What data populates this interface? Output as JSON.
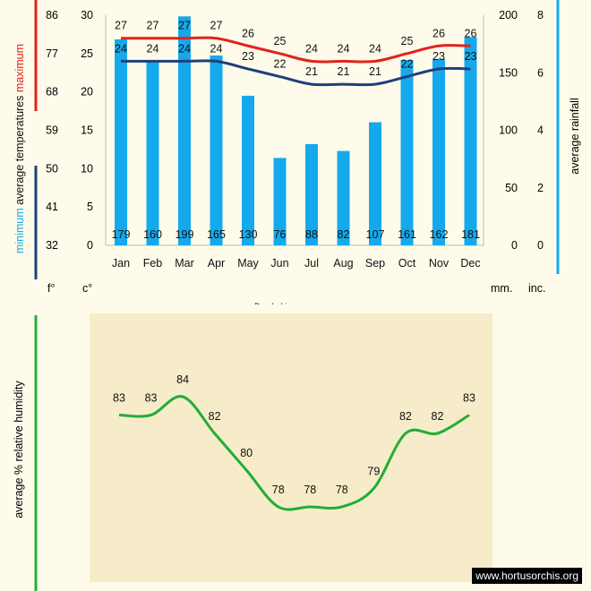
{
  "chart_data": [
    {
      "type": "bar",
      "categories": [
        "Jan",
        "Feb",
        "Mar",
        "Apr",
        "May",
        "Jun",
        "Jul",
        "Aug",
        "Sep",
        "Oct",
        "Nov",
        "Dec"
      ],
      "series": [
        {
          "name": "rainfall",
          "values": [
            179,
            160,
            199,
            165,
            130,
            76,
            88,
            82,
            107,
            161,
            162,
            181
          ]
        }
      ],
      "lines": [
        {
          "name": "maximum",
          "color": "#e2231a",
          "values": [
            27,
            27,
            27,
            27,
            26,
            25,
            24,
            24,
            24,
            25,
            26,
            26
          ]
        },
        {
          "name": "minimum",
          "color": "#1f3f7a",
          "values": [
            24,
            24,
            24,
            24,
            23,
            22,
            21,
            21,
            21,
            22,
            23,
            23
          ]
        }
      ],
      "title": "Dendrobium anosmum",
      "left_label_parts": [
        "minimum",
        "average temperatures",
        "maximum"
      ],
      "right_label": "average rainfall",
      "axis_f": {
        "ticks": [
          32,
          41,
          50,
          59,
          68,
          77,
          86
        ],
        "unit": "f°"
      },
      "axis_c": {
        "ticks": [
          0,
          5,
          10,
          15,
          20,
          25,
          30
        ],
        "unit": "c°",
        "ylim": [
          0,
          30
        ]
      },
      "axis_mm": {
        "ticks": [
          0,
          50,
          100,
          150,
          200
        ],
        "unit": "mm.",
        "ylim": [
          0,
          200
        ]
      },
      "axis_in": {
        "ticks": [
          0,
          2,
          4,
          6,
          8
        ],
        "unit": "inc."
      },
      "colors": {
        "bar": "#14a9ec",
        "rain_bar_axis": "#14a9ec",
        "max": "#e2231a",
        "min": "#1f3f7a"
      }
    },
    {
      "type": "line",
      "categories": [
        "Jan",
        "Feb",
        "Mar",
        "Apr",
        "May",
        "Jun",
        "Jul",
        "Aug",
        "Sep",
        "Oct",
        "Nov",
        "Dec"
      ],
      "values": [
        83,
        83,
        84,
        82,
        80,
        78,
        78,
        78,
        79,
        82,
        82,
        83
      ],
      "ylabel": "average %  relative humidity",
      "color": "#22ad38"
    }
  ],
  "watermark": "www.hortusorchis.org"
}
